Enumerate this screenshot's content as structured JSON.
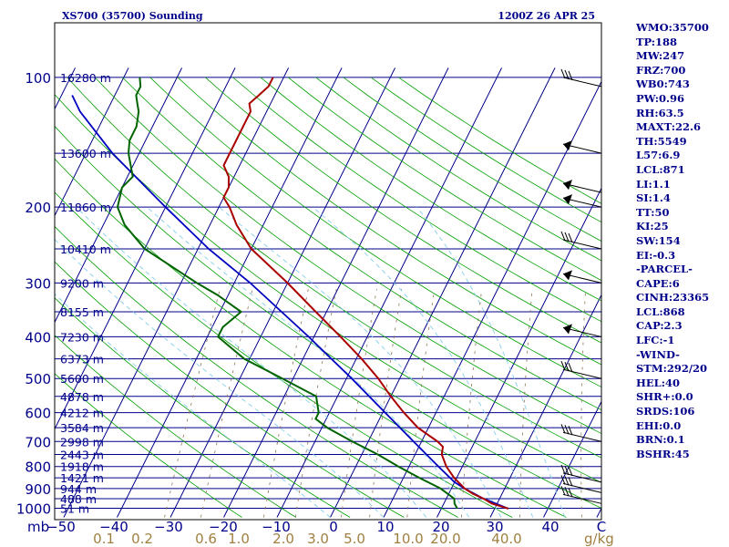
{
  "header": {
    "station": "XS700 (35700) Sounding",
    "valid_time": "1200Z 26 APR 25"
  },
  "stats": [
    "WMO:35700",
    "TP:188",
    "MW:247",
    "FRZ:700",
    "WB0:743",
    "PW:0.96",
    "RH:63.5",
    "MAXT:22.6",
    "TH:5549",
    "L57:6.9",
    "LCL:871",
    "LI:1.1",
    "SI:1.4",
    "TT:50",
    "KI:25",
    "SW:154",
    "EI:-0.3",
    "-PARCEL-",
    "CAPE:6",
    "CINH:23365",
    "LCL:868",
    "CAP:2.3",
    "LFC:-1",
    "-WIND-",
    "STM:292/20",
    "HEL:40",
    "SHR+:0.0",
    "SRDS:106",
    "EHI:0.0",
    "BRN:0.1",
    "BSHR:45"
  ],
  "colors": {
    "isobar": "#00008b",
    "dry_adiabat": "#00a000",
    "moist_adiabat": "#87ceeb",
    "mixing_ratio": "#8b7355",
    "temperature": "#aa0000",
    "dewpoint": "#006400",
    "parcel": "#0000c0",
    "label": "#00008b",
    "mixing_label": "#a08040"
  },
  "chart_data": {
    "type": "skew-t log-p sounding",
    "x_axis": {
      "title": "",
      "unit_label": "mb",
      "temperature_ticks": [
        "-50",
        "-40",
        "-30",
        "-20",
        "-10",
        "0",
        "10",
        "20",
        "30",
        "40",
        "C"
      ],
      "mixing_ratio_ticks": [
        "0.1",
        "0.2",
        "0.6",
        "1.0",
        "2.0",
        "3.0",
        "5.0",
        "10.0",
        "20.0",
        "40.0"
      ],
      "mixing_ratio_unit": "g/kg"
    },
    "pressure_ticks": [
      "100",
      "200",
      "300",
      "400",
      "500",
      "600",
      "700",
      "800",
      "900",
      "1000"
    ],
    "height_labels": [
      {
        "p": 100,
        "label": "16280 m"
      },
      {
        "p": 150,
        "label": "13600 m"
      },
      {
        "p": 200,
        "label": "11860 m"
      },
      {
        "p": 250,
        "label": "10410 m"
      },
      {
        "p": 300,
        "label": "9200 m"
      },
      {
        "p": 350,
        "label": "8155 m"
      },
      {
        "p": 400,
        "label": "7230 m"
      },
      {
        "p": 450,
        "label": "6373 m"
      },
      {
        "p": 500,
        "label": "5600 m"
      },
      {
        "p": 550,
        "label": "4878 m"
      },
      {
        "p": 600,
        "label": "4212 m"
      },
      {
        "p": 650,
        "label": "3584 m"
      },
      {
        "p": 700,
        "label": "2998 m"
      },
      {
        "p": 750,
        "label": "2443 m"
      },
      {
        "p": 800,
        "label": "1918 m"
      },
      {
        "p": 850,
        "label": "1421 m"
      },
      {
        "p": 900,
        "label": "944 m"
      },
      {
        "p": 950,
        "label": "488 m"
      },
      {
        "p": 1000,
        "label": "51 m"
      }
    ],
    "temperature_profile": [
      {
        "p": 1002,
        "t": 22.6
      },
      {
        "p": 975,
        "t": 19
      },
      {
        "p": 950,
        "t": 17
      },
      {
        "p": 925,
        "t": 14.5
      },
      {
        "p": 900,
        "t": 12.5
      },
      {
        "p": 850,
        "t": 9.5
      },
      {
        "p": 800,
        "t": 7
      },
      {
        "p": 750,
        "t": 5
      },
      {
        "p": 720,
        "t": 4.5
      },
      {
        "p": 700,
        "t": 3
      },
      {
        "p": 650,
        "t": -2
      },
      {
        "p": 600,
        "t": -6
      },
      {
        "p": 550,
        "t": -10
      },
      {
        "p": 500,
        "t": -14
      },
      {
        "p": 450,
        "t": -19
      },
      {
        "p": 400,
        "t": -25
      },
      {
        "p": 350,
        "t": -32
      },
      {
        "p": 300,
        "t": -40
      },
      {
        "p": 250,
        "t": -50
      },
      {
        "p": 220,
        "t": -55
      },
      {
        "p": 200,
        "t": -58
      },
      {
        "p": 190,
        "t": -60
      },
      {
        "p": 180,
        "t": -60
      },
      {
        "p": 170,
        "t": -61
      },
      {
        "p": 160,
        "t": -63
      },
      {
        "p": 150,
        "t": -63
      },
      {
        "p": 140,
        "t": -63
      },
      {
        "p": 130,
        "t": -63
      },
      {
        "p": 120,
        "t": -63
      },
      {
        "p": 115,
        "t": -64
      },
      {
        "p": 110,
        "t": -63
      },
      {
        "p": 105,
        "t": -62
      },
      {
        "p": 100,
        "t": -62
      }
    ],
    "dewpoint_profile": [
      {
        "p": 1002,
        "t": 13
      },
      {
        "p": 975,
        "t": 12
      },
      {
        "p": 950,
        "t": 11.5
      },
      {
        "p": 900,
        "t": 8
      },
      {
        "p": 850,
        "t": 3
      },
      {
        "p": 800,
        "t": -2
      },
      {
        "p": 750,
        "t": -7
      },
      {
        "p": 700,
        "t": -13
      },
      {
        "p": 650,
        "t": -19
      },
      {
        "p": 620,
        "t": -22
      },
      {
        "p": 600,
        "t": -22
      },
      {
        "p": 550,
        "t": -24
      },
      {
        "p": 500,
        "t": -32
      },
      {
        "p": 450,
        "t": -41
      },
      {
        "p": 400,
        "t": -48
      },
      {
        "p": 380,
        "t": -48
      },
      {
        "p": 350,
        "t": -46
      },
      {
        "p": 320,
        "t": -52
      },
      {
        "p": 300,
        "t": -57
      },
      {
        "p": 250,
        "t": -70
      },
      {
        "p": 220,
        "t": -76
      },
      {
        "p": 200,
        "t": -79
      },
      {
        "p": 180,
        "t": -80
      },
      {
        "p": 170,
        "t": -79
      },
      {
        "p": 150,
        "t": -82
      },
      {
        "p": 140,
        "t": -83
      },
      {
        "p": 130,
        "t": -83
      },
      {
        "p": 120,
        "t": -84
      },
      {
        "p": 115,
        "t": -85
      },
      {
        "p": 110,
        "t": -86
      },
      {
        "p": 105,
        "t": -86
      },
      {
        "p": 100,
        "t": -87
      }
    ],
    "parcel_profile": [
      {
        "p": 1002,
        "t": 22.6
      },
      {
        "p": 950,
        "t": 17
      },
      {
        "p": 900,
        "t": 12.5
      },
      {
        "p": 870,
        "t": 10
      },
      {
        "p": 800,
        "t": 5.5
      },
      {
        "p": 700,
        "t": -1.5
      },
      {
        "p": 600,
        "t": -9.5
      },
      {
        "p": 500,
        "t": -19
      },
      {
        "p": 400,
        "t": -31
      },
      {
        "p": 300,
        "t": -47
      },
      {
        "p": 250,
        "t": -58
      },
      {
        "p": 200,
        "t": -70
      },
      {
        "p": 150,
        "t": -85
      },
      {
        "p": 120,
        "t": -95
      },
      {
        "p": 110,
        "t": -98
      }
    ],
    "wind_barb_levels": [
      {
        "p": 105,
        "kind": "bars"
      },
      {
        "p": 150,
        "kind": "flag"
      },
      {
        "p": 185,
        "kind": "flag"
      },
      {
        "p": 200,
        "kind": "flag"
      },
      {
        "p": 250,
        "kind": "bars"
      },
      {
        "p": 300,
        "kind": "flag"
      },
      {
        "p": 400,
        "kind": "flag"
      },
      {
        "p": 500,
        "kind": "bars"
      },
      {
        "p": 700,
        "kind": "bars"
      },
      {
        "p": 870,
        "kind": "bars"
      },
      {
        "p": 920,
        "kind": "bars"
      },
      {
        "p": 975,
        "kind": "bars"
      }
    ]
  }
}
